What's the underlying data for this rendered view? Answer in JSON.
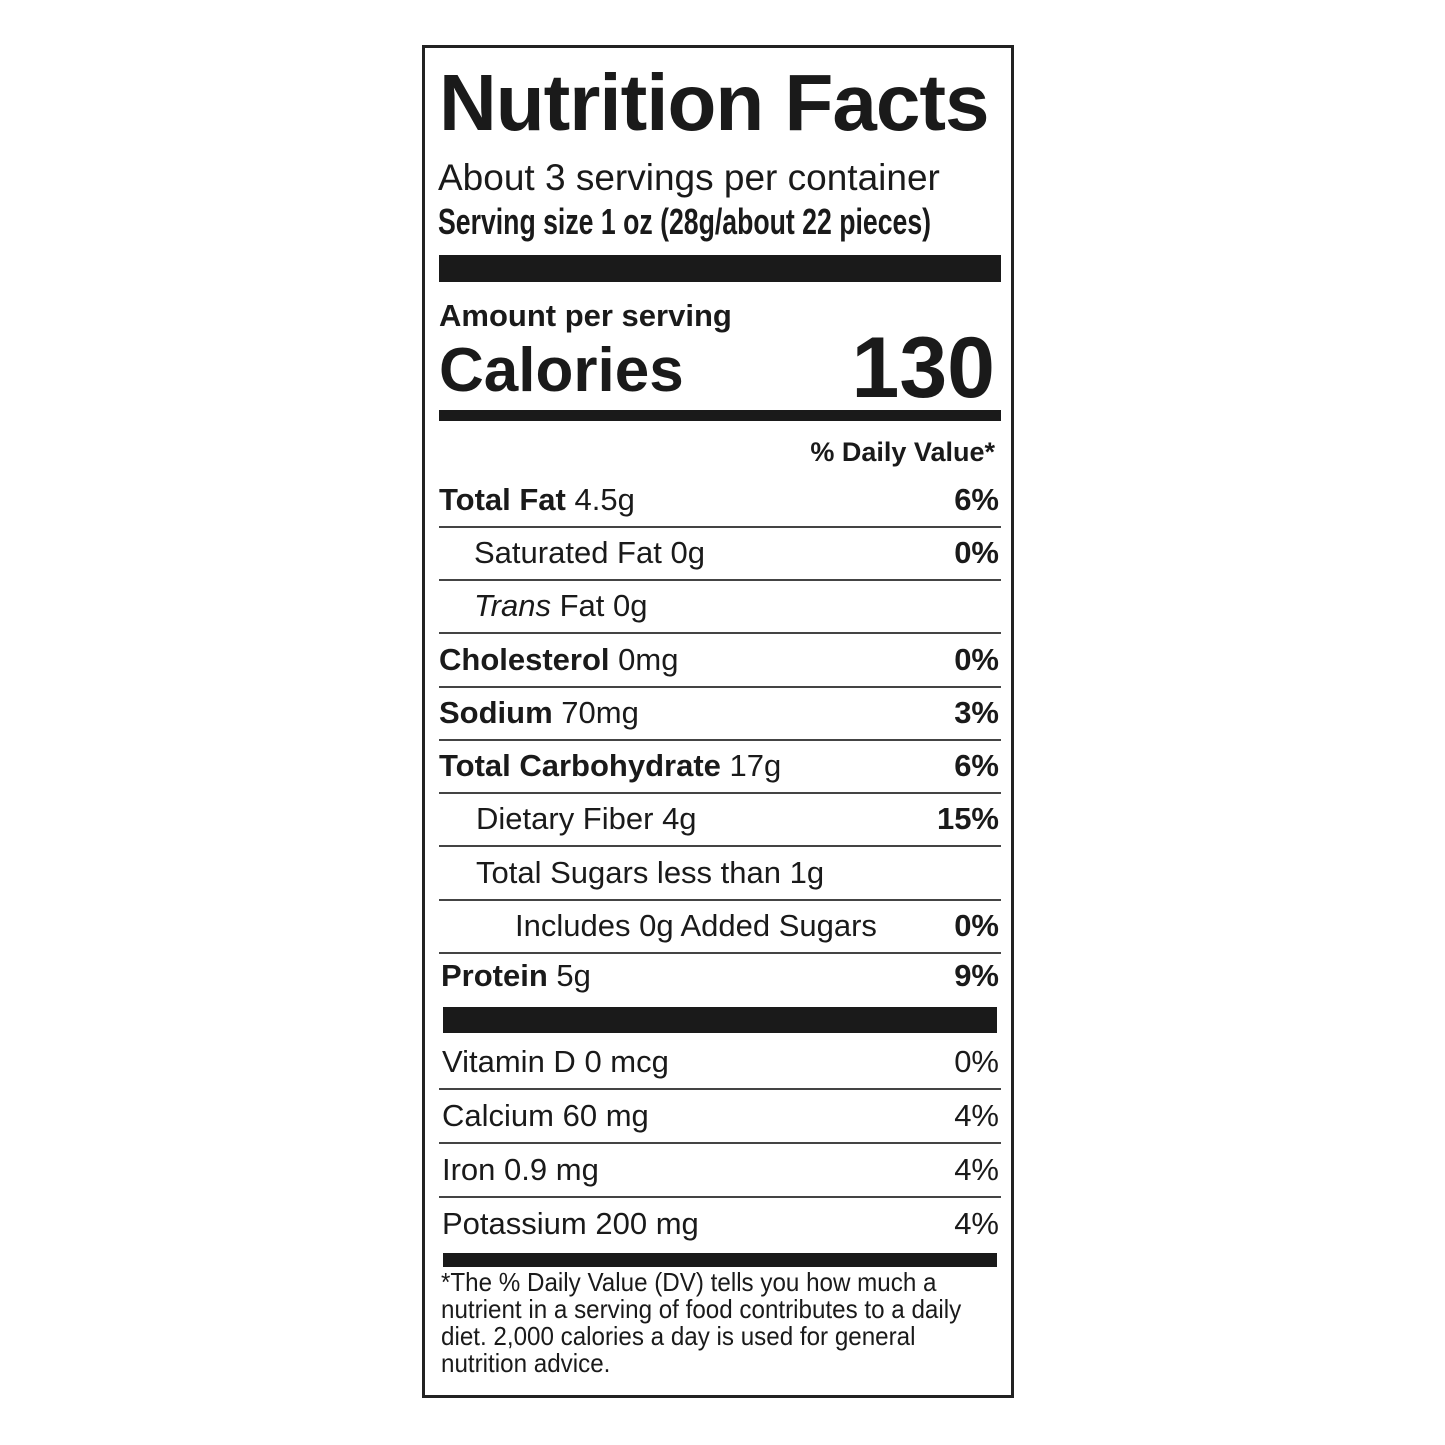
{
  "title": "Nutrition Facts",
  "servings_per_container": "About 3 servings per container",
  "serving_size": "Serving size 1 oz (28g/about 22 pieces)",
  "amount_per_serving": "Amount per serving",
  "calories_label": "Calories",
  "calories_value": "130",
  "daily_value_header": "% Daily Value*",
  "nutrients": [
    {
      "name": "Total Fat",
      "amount": "4.5g",
      "dv": "6%"
    },
    {
      "name": "Saturated Fat",
      "amount": "0g",
      "dv": "0%"
    },
    {
      "name_italic": "Trans",
      "name": "Fat",
      "amount": "0g",
      "dv": ""
    },
    {
      "name": "Cholesterol",
      "amount": "0mg",
      "dv": "0%"
    },
    {
      "name": "Sodium",
      "amount": "70mg",
      "dv": "3%"
    },
    {
      "name": "Total Carbohydrate",
      "amount": "17g",
      "dv": "6%"
    },
    {
      "name": "Dietary Fiber",
      "amount": "4g",
      "dv": "15%"
    },
    {
      "name": "Total Sugars less than",
      "amount": "1g",
      "dv": ""
    },
    {
      "name": "Includes 0g Added Sugars",
      "amount": "",
      "dv": "0%"
    },
    {
      "name": "Protein",
      "amount": "5g",
      "dv": "9%"
    }
  ],
  "vitamins": [
    {
      "name": "Vitamin D",
      "amount": "0 mcg",
      "dv": "0%"
    },
    {
      "name": "Calcium",
      "amount": "60 mg",
      "dv": "4%"
    },
    {
      "name": "Iron",
      "amount": "0.9 mg",
      "dv": "4%"
    },
    {
      "name": "Potassium",
      "amount": "200 mg",
      "dv": "4%"
    }
  ],
  "footnote": "*The % Daily Value (DV) tells you how much a nutrient in a serving of food contributes to a daily diet. 2,000 calories a day is used for general nutrition advice."
}
